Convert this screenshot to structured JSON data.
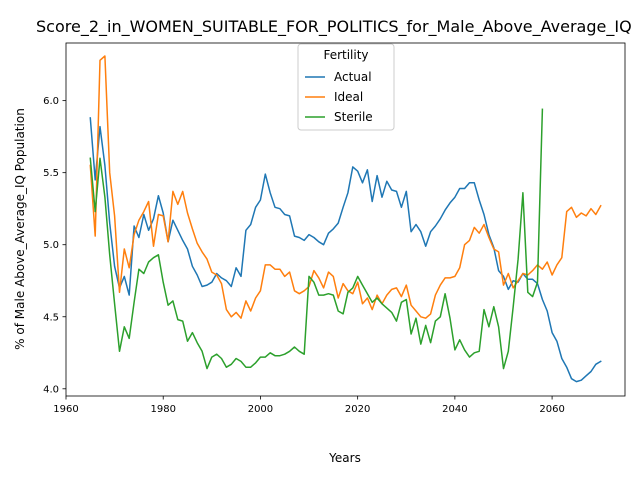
{
  "chart_data": {
    "type": "line",
    "title": "Score_2_in_WOMEN_SUITABLE_FOR_POLITICS_for_Male_Above_Average_IQ",
    "xlabel": "Years",
    "ylabel": "% of Male Above_Average_IQ Population",
    "xlim": [
      1960,
      2075
    ],
    "ylim": [
      3.95,
      6.4
    ],
    "xticks": [
      1960,
      1980,
      2000,
      2020,
      2040,
      2060
    ],
    "yticks": [
      4.0,
      4.5,
      5.0,
      5.5,
      6.0
    ],
    "ytick_labels": [
      "4.0",
      "4.5",
      "5.0",
      "5.5",
      "6.0"
    ],
    "grid": false,
    "legend": {
      "title": "Fertility",
      "placement": "upper-center"
    },
    "series": [
      {
        "name": "Actual",
        "color": "#1f77b4",
        "x": [
          1965,
          1966,
          1967,
          1968,
          1969,
          1970,
          1971,
          1972,
          1973,
          1974,
          1975,
          1976,
          1977,
          1978,
          1979,
          1980,
          1981,
          1982,
          1983,
          1984,
          1985,
          1986,
          1987,
          1988,
          1989,
          1990,
          1991,
          1992,
          1993,
          1994,
          1995,
          1996,
          1997,
          1998,
          1999,
          2000,
          2001,
          2002,
          2003,
          2004,
          2005,
          2006,
          2007,
          2008,
          2009,
          2010,
          2011,
          2012,
          2013,
          2014,
          2015,
          2016,
          2017,
          2018,
          2019,
          2020,
          2021,
          2022,
          2023,
          2024,
          2025,
          2026,
          2027,
          2028,
          2029,
          2030,
          2031,
          2032,
          2033,
          2034,
          2035,
          2036,
          2037,
          2038,
          2039,
          2040,
          2041,
          2042,
          2043,
          2044,
          2045,
          2046,
          2047,
          2048,
          2049,
          2050,
          2051,
          2052,
          2053,
          2054,
          2055,
          2056,
          2057,
          2058,
          2059,
          2060,
          2061,
          2062,
          2063,
          2064,
          2065,
          2066,
          2067,
          2068,
          2069,
          2070
        ],
        "values": [
          5.88,
          5.45,
          5.82,
          5.55,
          5.15,
          4.85,
          4.7,
          4.78,
          4.65,
          5.13,
          5.05,
          5.21,
          5.1,
          5.18,
          5.34,
          5.22,
          5.02,
          5.17,
          5.1,
          5.03,
          4.97,
          4.85,
          4.79,
          4.71,
          4.72,
          4.74,
          4.8,
          4.77,
          4.75,
          4.71,
          4.84,
          4.78,
          5.1,
          5.14,
          5.26,
          5.31,
          5.49,
          5.36,
          5.26,
          5.25,
          5.21,
          5.2,
          5.06,
          5.05,
          5.03,
          5.07,
          5.05,
          5.02,
          5.0,
          5.08,
          5.11,
          5.15,
          5.26,
          5.36,
          5.54,
          5.51,
          5.43,
          5.52,
          5.3,
          5.48,
          5.33,
          5.44,
          5.38,
          5.37,
          5.26,
          5.37,
          5.09,
          5.14,
          5.09,
          4.99,
          5.09,
          5.13,
          5.18,
          5.24,
          5.29,
          5.33,
          5.39,
          5.39,
          5.43,
          5.43,
          5.31,
          5.21,
          5.07,
          4.98,
          4.82,
          4.78,
          4.69,
          4.75,
          4.74,
          4.8,
          4.76,
          4.76,
          4.73,
          4.62,
          4.54,
          4.39,
          4.33,
          4.21,
          4.15,
          4.07,
          4.05,
          4.06,
          4.09,
          4.12,
          4.17,
          4.19
        ]
      },
      {
        "name": "Ideal",
        "color": "#ff7f0e",
        "x": [
          1965,
          1966,
          1967,
          1968,
          1969,
          1970,
          1971,
          1972,
          1973,
          1974,
          1975,
          1976,
          1977,
          1978,
          1979,
          1980,
          1981,
          1982,
          1983,
          1984,
          1985,
          1986,
          1987,
          1988,
          1989,
          1990,
          1991,
          1992,
          1993,
          1994,
          1995,
          1996,
          1997,
          1998,
          1999,
          2000,
          2001,
          2002,
          2003,
          2004,
          2005,
          2006,
          2007,
          2008,
          2009,
          2010,
          2011,
          2012,
          2013,
          2014,
          2015,
          2016,
          2017,
          2018,
          2019,
          2020,
          2021,
          2022,
          2023,
          2024,
          2025,
          2026,
          2027,
          2028,
          2029,
          2030,
          2031,
          2032,
          2033,
          2034,
          2035,
          2036,
          2037,
          2038,
          2039,
          2040,
          2041,
          2042,
          2043,
          2044,
          2045,
          2046,
          2047,
          2048,
          2049,
          2050,
          2051,
          2052,
          2053,
          2054,
          2055,
          2056,
          2057,
          2058,
          2059,
          2060,
          2061,
          2062,
          2063,
          2064,
          2065,
          2066,
          2067,
          2068,
          2069,
          2070
        ],
        "values": [
          5.55,
          5.06,
          6.28,
          6.31,
          5.5,
          5.2,
          4.67,
          4.97,
          4.84,
          5.07,
          5.17,
          5.23,
          5.3,
          4.99,
          5.21,
          5.2,
          5.02,
          5.37,
          5.28,
          5.37,
          5.22,
          5.11,
          5.01,
          4.95,
          4.9,
          4.81,
          4.79,
          4.73,
          4.55,
          4.5,
          4.53,
          4.49,
          4.61,
          4.54,
          4.63,
          4.68,
          4.86,
          4.86,
          4.83,
          4.83,
          4.78,
          4.81,
          4.68,
          4.66,
          4.68,
          4.71,
          4.82,
          4.77,
          4.7,
          4.81,
          4.78,
          4.63,
          4.73,
          4.68,
          4.66,
          4.74,
          4.59,
          4.63,
          4.55,
          4.65,
          4.59,
          4.65,
          4.69,
          4.7,
          4.64,
          4.72,
          4.58,
          4.54,
          4.5,
          4.49,
          4.52,
          4.65,
          4.72,
          4.77,
          4.77,
          4.78,
          4.84,
          5.0,
          5.03,
          5.12,
          5.08,
          5.14,
          5.05,
          4.97,
          4.95,
          4.72,
          4.8,
          4.7,
          4.75,
          4.8,
          4.79,
          4.82,
          4.86,
          4.83,
          4.88,
          4.79,
          4.86,
          4.91,
          5.23,
          5.26,
          5.19,
          5.22,
          5.2,
          5.25,
          5.21,
          5.27
        ]
      },
      {
        "name": "Sterile",
        "color": "#2ca02c",
        "x": [
          1965,
          1966,
          1967,
          1968,
          1969,
          1970,
          1971,
          1972,
          1973,
          1974,
          1975,
          1976,
          1977,
          1978,
          1979,
          1980,
          1981,
          1982,
          1983,
          1984,
          1985,
          1986,
          1987,
          1988,
          1989,
          1990,
          1991,
          1992,
          1993,
          1994,
          1995,
          1996,
          1997,
          1998,
          1999,
          2000,
          2001,
          2002,
          2003,
          2004,
          2005,
          2006,
          2007,
          2008,
          2009,
          2010,
          2011,
          2012,
          2013,
          2014,
          2015,
          2016,
          2017,
          2018,
          2019,
          2020,
          2021,
          2022,
          2023,
          2024,
          2025,
          2026,
          2027,
          2028,
          2029,
          2030,
          2031,
          2032,
          2033,
          2034,
          2035,
          2036,
          2037,
          2038,
          2039,
          2040,
          2041,
          2042,
          2043,
          2044,
          2045,
          2046,
          2047,
          2048,
          2049,
          2050,
          2051,
          2052,
          2053,
          2054,
          2055,
          2056,
          2057,
          2058
        ],
        "values": [
          5.6,
          5.23,
          5.6,
          5.33,
          4.93,
          4.59,
          4.26,
          4.43,
          4.35,
          4.6,
          4.83,
          4.8,
          4.88,
          4.91,
          4.93,
          4.74,
          4.58,
          4.61,
          4.48,
          4.47,
          4.33,
          4.39,
          4.32,
          4.26,
          4.14,
          4.22,
          4.24,
          4.21,
          4.15,
          4.17,
          4.21,
          4.19,
          4.15,
          4.15,
          4.18,
          4.22,
          4.22,
          4.25,
          4.23,
          4.23,
          4.24,
          4.26,
          4.29,
          4.26,
          4.24,
          4.78,
          4.74,
          4.65,
          4.65,
          4.66,
          4.65,
          4.54,
          4.52,
          4.67,
          4.7,
          4.78,
          4.72,
          4.66,
          4.6,
          4.63,
          4.59,
          4.56,
          4.53,
          4.47,
          4.6,
          4.62,
          4.38,
          4.49,
          4.31,
          4.44,
          4.32,
          4.47,
          4.5,
          4.66,
          4.49,
          4.27,
          4.34,
          4.27,
          4.22,
          4.25,
          4.26,
          4.55,
          4.43,
          4.57,
          4.43,
          4.14,
          4.26,
          4.57,
          4.9,
          5.36,
          4.67,
          4.64,
          4.74,
          5.94
        ]
      }
    ]
  }
}
